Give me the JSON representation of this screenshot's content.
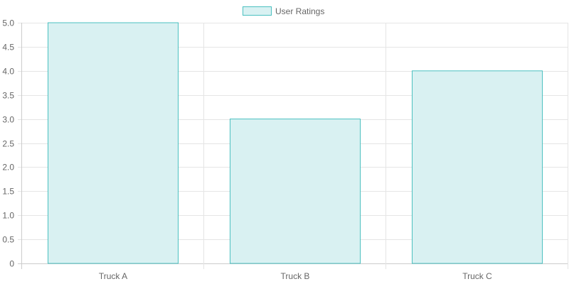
{
  "chart_data": {
    "type": "bar",
    "categories": [
      "Truck A",
      "Truck B",
      "Truck C"
    ],
    "series": [
      {
        "name": "User Ratings",
        "values": [
          5,
          3,
          4
        ],
        "fill_color": "#d9f1f2",
        "border_color": "#4bc0c0"
      }
    ],
    "title": "",
    "xlabel": "",
    "ylabel": "",
    "ylim": [
      0,
      5
    ],
    "yticks": [
      "0",
      "0.5",
      "1.0",
      "1.5",
      "2.0",
      "2.5",
      "3.0",
      "3.5",
      "4.0",
      "4.5",
      "5.0"
    ],
    "grid": true,
    "legend_position": "top-center"
  }
}
